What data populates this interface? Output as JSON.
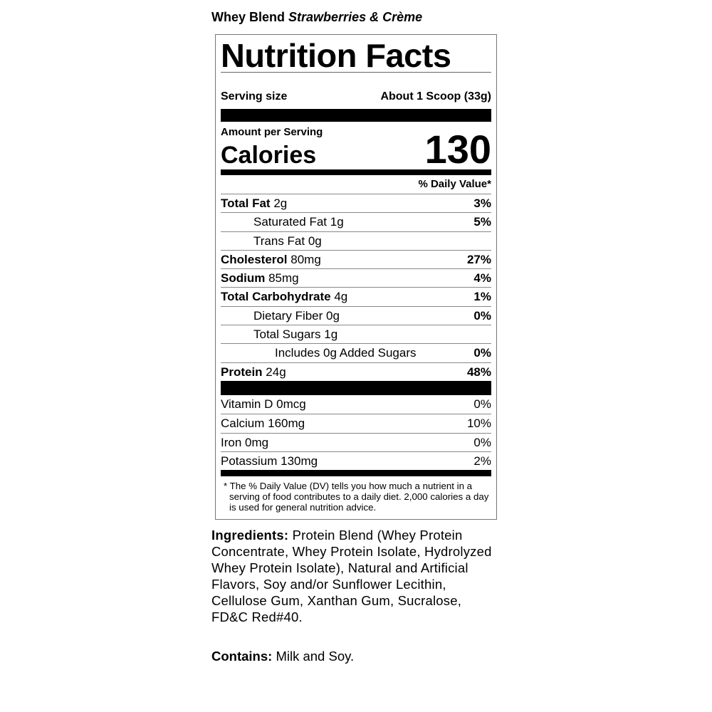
{
  "product": {
    "name": "Whey Blend",
    "flavor": "Strawberries & Crème"
  },
  "label": {
    "title": "Nutrition Facts",
    "serving_size_label": "Serving size",
    "serving_size_value": "About 1 Scoop (33g)",
    "amount_per_serving": "Amount per Serving",
    "calories_label": "Calories",
    "calories_value": "130",
    "daily_value_header": "% Daily Value*",
    "nutrients": [
      {
        "name": "Total Fat",
        "amount": "2g",
        "dv": "3%"
      },
      {
        "name": "Saturated Fat",
        "amount": "1g",
        "dv": "5%"
      },
      {
        "name": "Trans Fat",
        "amount": "0g",
        "dv": ""
      },
      {
        "name": "Cholesterol",
        "amount": "80mg",
        "dv": "27%"
      },
      {
        "name": "Sodium",
        "amount": "85mg",
        "dv": "4%"
      },
      {
        "name": "Total Carbohydrate",
        "amount": "4g",
        "dv": "1%"
      },
      {
        "name": "Dietary Fiber",
        "amount": "0g",
        "dv": "0%"
      },
      {
        "name": "Total Sugars",
        "amount": "1g",
        "dv": ""
      },
      {
        "name": "Includes 0g Added Sugars",
        "amount": "",
        "dv": "0%"
      },
      {
        "name": "Protein",
        "amount": "24g",
        "dv": "48%"
      }
    ],
    "vitamins": [
      {
        "name": "Vitamin D",
        "amount": "0mcg",
        "dv": "0%"
      },
      {
        "name": "Calcium",
        "amount": "160mg",
        "dv": "10%"
      },
      {
        "name": "Iron",
        "amount": "0mg",
        "dv": "0%"
      },
      {
        "name": "Potassium",
        "amount": "130mg",
        "dv": "2%"
      }
    ],
    "footnote": "* The % Daily Value (DV) tells you how much a nutrient in a serving of food contributes to a daily diet. 2,000 calories a  day is used for general nutrition advice."
  },
  "ingredients": {
    "label": "Ingredients:",
    "text": "Protein Blend (Whey Protein Concentrate, Whey Protein Isolate, Hydrolyzed Whey Protein Isolate), Natural and Artificial Flavors, Soy and/or Sunflower Lecithin, Cellulose Gum, Xanthan Gum, Sucralose, FD&C Red#40."
  },
  "contains": {
    "label": "Contains:",
    "text": "Milk and Soy."
  }
}
